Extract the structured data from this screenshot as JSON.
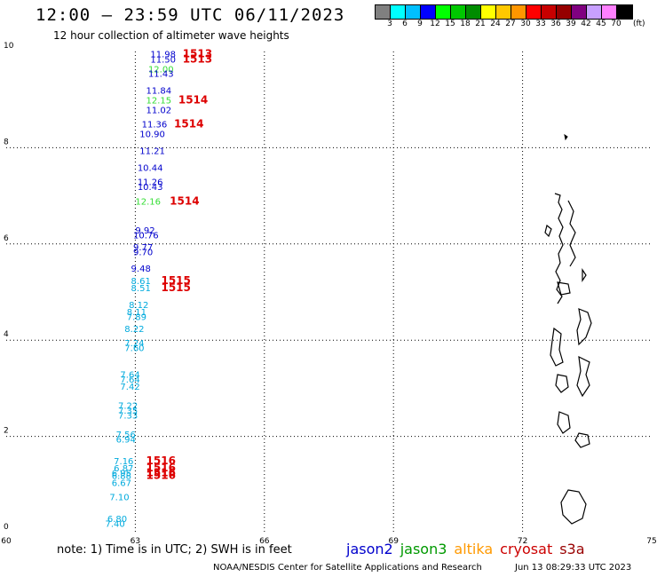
{
  "title": "12:00 – 23:59 UTC 06/11/2023",
  "subtitle": "12 hour collection of altimeter wave heights",
  "colorbar": {
    "colors": [
      "#808080",
      "#00ffff",
      "#00bfff",
      "#0000ff",
      "#00ff00",
      "#00c800",
      "#008c00",
      "#ffff00",
      "#ffc800",
      "#ff9600",
      "#ff0000",
      "#c80000",
      "#960000",
      "#800080",
      "#c8a0ff",
      "#ff80ff",
      "#000000"
    ],
    "labels": [
      "3",
      "6",
      "9",
      "12",
      "15",
      "18",
      "21",
      "24",
      "27",
      "30",
      "33",
      "36",
      "39",
      "42",
      "45",
      "70"
    ],
    "unit": "(ft)"
  },
  "axes": {
    "x_ticks": [
      "60",
      "63",
      "66",
      "69",
      "72",
      "75"
    ],
    "y_ticks": [
      "10",
      "8",
      "6",
      "4",
      "2",
      "0"
    ],
    "xlim": [
      60,
      75
    ],
    "ylim": [
      0,
      10
    ]
  },
  "wave_labels": [
    {
      "text": "11.98",
      "lon": 63.35,
      "lat": 9.88,
      "color": "#0000cc"
    },
    {
      "text": "11.50",
      "lon": 63.35,
      "lat": 9.77,
      "color": "#0000cc"
    },
    {
      "text": "12.00",
      "lon": 63.3,
      "lat": 9.57,
      "color": "#33dd33"
    },
    {
      "text": "11.43",
      "lon": 63.3,
      "lat": 9.47,
      "color": "#0000cc"
    },
    {
      "text": "11.84",
      "lon": 63.25,
      "lat": 9.12,
      "color": "#0000cc"
    },
    {
      "text": "12.15",
      "lon": 63.25,
      "lat": 8.92,
      "color": "#33dd33"
    },
    {
      "text": "11.02",
      "lon": 63.25,
      "lat": 8.72,
      "color": "#0000cc"
    },
    {
      "text": "11.36",
      "lon": 63.15,
      "lat": 8.42,
      "color": "#0000cc"
    },
    {
      "text": "10.90",
      "lon": 63.1,
      "lat": 8.22,
      "color": "#0000cc"
    },
    {
      "text": "11.21",
      "lon": 63.1,
      "lat": 7.87,
      "color": "#0000cc"
    },
    {
      "text": "10.44",
      "lon": 63.05,
      "lat": 7.52,
      "color": "#0000cc"
    },
    {
      "text": "11.26",
      "lon": 63.05,
      "lat": 7.22,
      "color": "#0000cc"
    },
    {
      "text": "10.43",
      "lon": 63.05,
      "lat": 7.12,
      "color": "#0000cc"
    },
    {
      "text": "12.16",
      "lon": 63.0,
      "lat": 6.82,
      "color": "#33dd33"
    },
    {
      "text": "9.92",
      "lon": 63.0,
      "lat": 6.22,
      "color": "#0000cc"
    },
    {
      "text": "10.76",
      "lon": 62.95,
      "lat": 6.12,
      "color": "#0000cc"
    },
    {
      "text": "9.77",
      "lon": 62.95,
      "lat": 5.87,
      "color": "#0000cc"
    },
    {
      "text": "9.70",
      "lon": 62.95,
      "lat": 5.77,
      "color": "#0000cc"
    },
    {
      "text": "9.48",
      "lon": 62.9,
      "lat": 5.42,
      "color": "#0000cc"
    },
    {
      "text": "8.61",
      "lon": 62.9,
      "lat": 5.17,
      "color": "#00aadd"
    },
    {
      "text": "8.51",
      "lon": 62.9,
      "lat": 5.02,
      "color": "#00aadd"
    },
    {
      "text": "8.12",
      "lon": 62.85,
      "lat": 4.67,
      "color": "#00aadd"
    },
    {
      "text": "8.11",
      "lon": 62.8,
      "lat": 4.52,
      "color": "#00aadd"
    },
    {
      "text": "7.89",
      "lon": 62.8,
      "lat": 4.42,
      "color": "#00aadd"
    },
    {
      "text": "8.22",
      "lon": 62.75,
      "lat": 4.17,
      "color": "#00aadd"
    },
    {
      "text": "7.24",
      "lon": 62.75,
      "lat": 3.87,
      "color": "#00aadd"
    },
    {
      "text": "7.60",
      "lon": 62.75,
      "lat": 3.77,
      "color": "#00aadd"
    },
    {
      "text": "7.64",
      "lon": 62.65,
      "lat": 3.22,
      "color": "#00aadd"
    },
    {
      "text": "7.64",
      "lon": 62.65,
      "lat": 3.12,
      "color": "#00aadd"
    },
    {
      "text": "7.42",
      "lon": 62.65,
      "lat": 2.97,
      "color": "#00aadd"
    },
    {
      "text": "7.22",
      "lon": 62.6,
      "lat": 2.57,
      "color": "#00aadd"
    },
    {
      "text": "7.35",
      "lon": 62.6,
      "lat": 2.47,
      "color": "#00aadd"
    },
    {
      "text": "7.33",
      "lon": 62.6,
      "lat": 2.37,
      "color": "#00aadd"
    },
    {
      "text": "7.56",
      "lon": 62.55,
      "lat": 1.97,
      "color": "#00aadd"
    },
    {
      "text": "6.94",
      "lon": 62.55,
      "lat": 1.87,
      "color": "#00aadd"
    },
    {
      "text": "7.16",
      "lon": 62.5,
      "lat": 1.42,
      "color": "#00aadd"
    },
    {
      "text": "6.87",
      "lon": 62.5,
      "lat": 1.27,
      "color": "#00aadd"
    },
    {
      "text": "6.95",
      "lon": 62.45,
      "lat": 1.17,
      "color": "#00aadd"
    },
    {
      "text": "6.88",
      "lon": 62.45,
      "lat": 1.12,
      "color": "#00aadd"
    },
    {
      "text": "6.67",
      "lon": 62.45,
      "lat": 0.97,
      "color": "#00aadd"
    },
    {
      "text": "7.10",
      "lon": 62.4,
      "lat": 0.67,
      "color": "#00aadd"
    },
    {
      "text": "6.80",
      "lon": 62.35,
      "lat": 0.22,
      "color": "#00aadd"
    },
    {
      "text": "7.40",
      "lon": 62.3,
      "lat": 0.12,
      "color": "#00aadd"
    }
  ],
  "time_labels": [
    {
      "text": "1513",
      "lon": 64.1,
      "lat": 9.88
    },
    {
      "text": "1513",
      "lon": 64.1,
      "lat": 9.77
    },
    {
      "text": "1514",
      "lon": 64.0,
      "lat": 8.92
    },
    {
      "text": "1514",
      "lon": 63.9,
      "lat": 8.42
    },
    {
      "text": "1514",
      "lon": 63.8,
      "lat": 6.82
    },
    {
      "text": "1515",
      "lon": 63.6,
      "lat": 5.17
    },
    {
      "text": "1515",
      "lon": 63.6,
      "lat": 5.02
    },
    {
      "text": "1516",
      "lon": 63.25,
      "lat": 1.42
    },
    {
      "text": "1516",
      "lon": 63.25,
      "lat": 1.27
    },
    {
      "text": "1516",
      "lon": 63.25,
      "lat": 1.17
    },
    {
      "text": "1516",
      "lon": 63.25,
      "lat": 1.12
    }
  ],
  "note": "note:  1) Time is in UTC;  2) SWH is in feet",
  "legend": [
    {
      "name": "jason2",
      "color": "#0000cc"
    },
    {
      "name": "jason3",
      "color": "#009900"
    },
    {
      "name": "altika",
      "color": "#ff9900"
    },
    {
      "name": "cryosat",
      "color": "#cc0000"
    },
    {
      "name": "s3a",
      "color": "#990000"
    }
  ],
  "credit": "NOAA/NESDIS Center for Satellite Applications and Research",
  "timestamp": "Jun 13 08:29:33 UTC 2023"
}
